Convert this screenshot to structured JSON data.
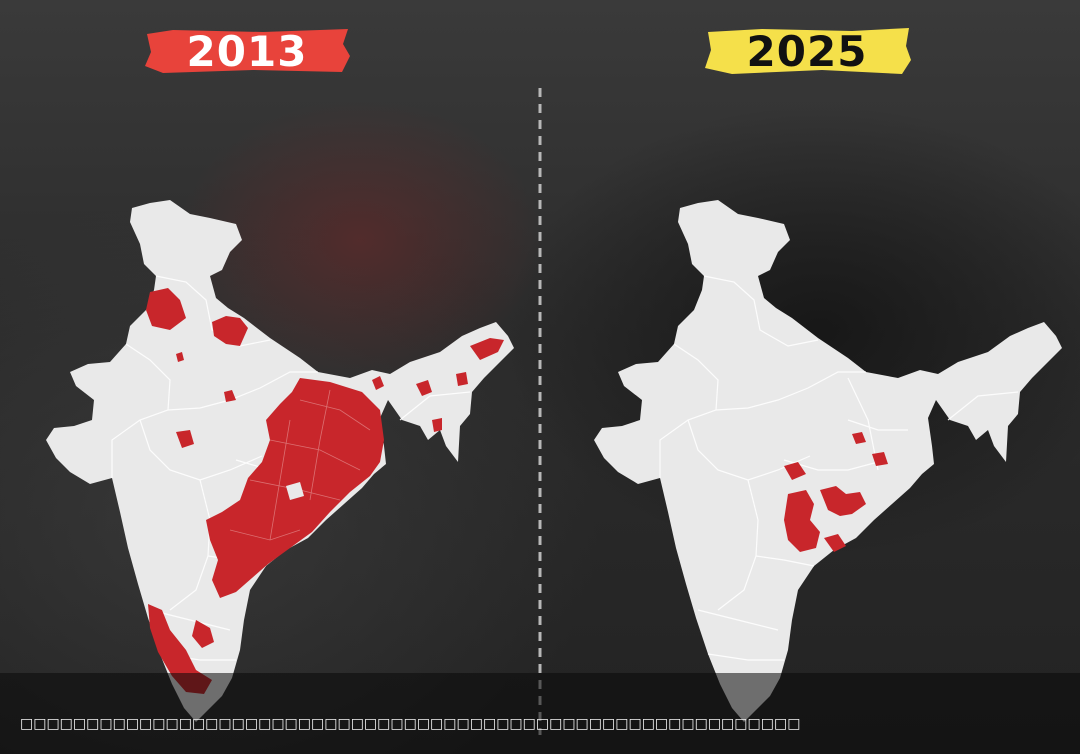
{
  "left_panel": {
    "year": "2013",
    "badge_color": "#e8433b"
  },
  "right_panel": {
    "year": "2025",
    "badge_color": "#f5e04a"
  },
  "colors": {
    "land": "#e9e9e9",
    "highlight": "#c8262b",
    "border": "#ffffff",
    "divider": "#b8b8b8"
  },
  "caption": "□□□□□□□□□□□□□□□□□□□□□□□□□□□□□□□□□□□□□□□□□□□□□□□□□□□□□□□□□□□"
}
